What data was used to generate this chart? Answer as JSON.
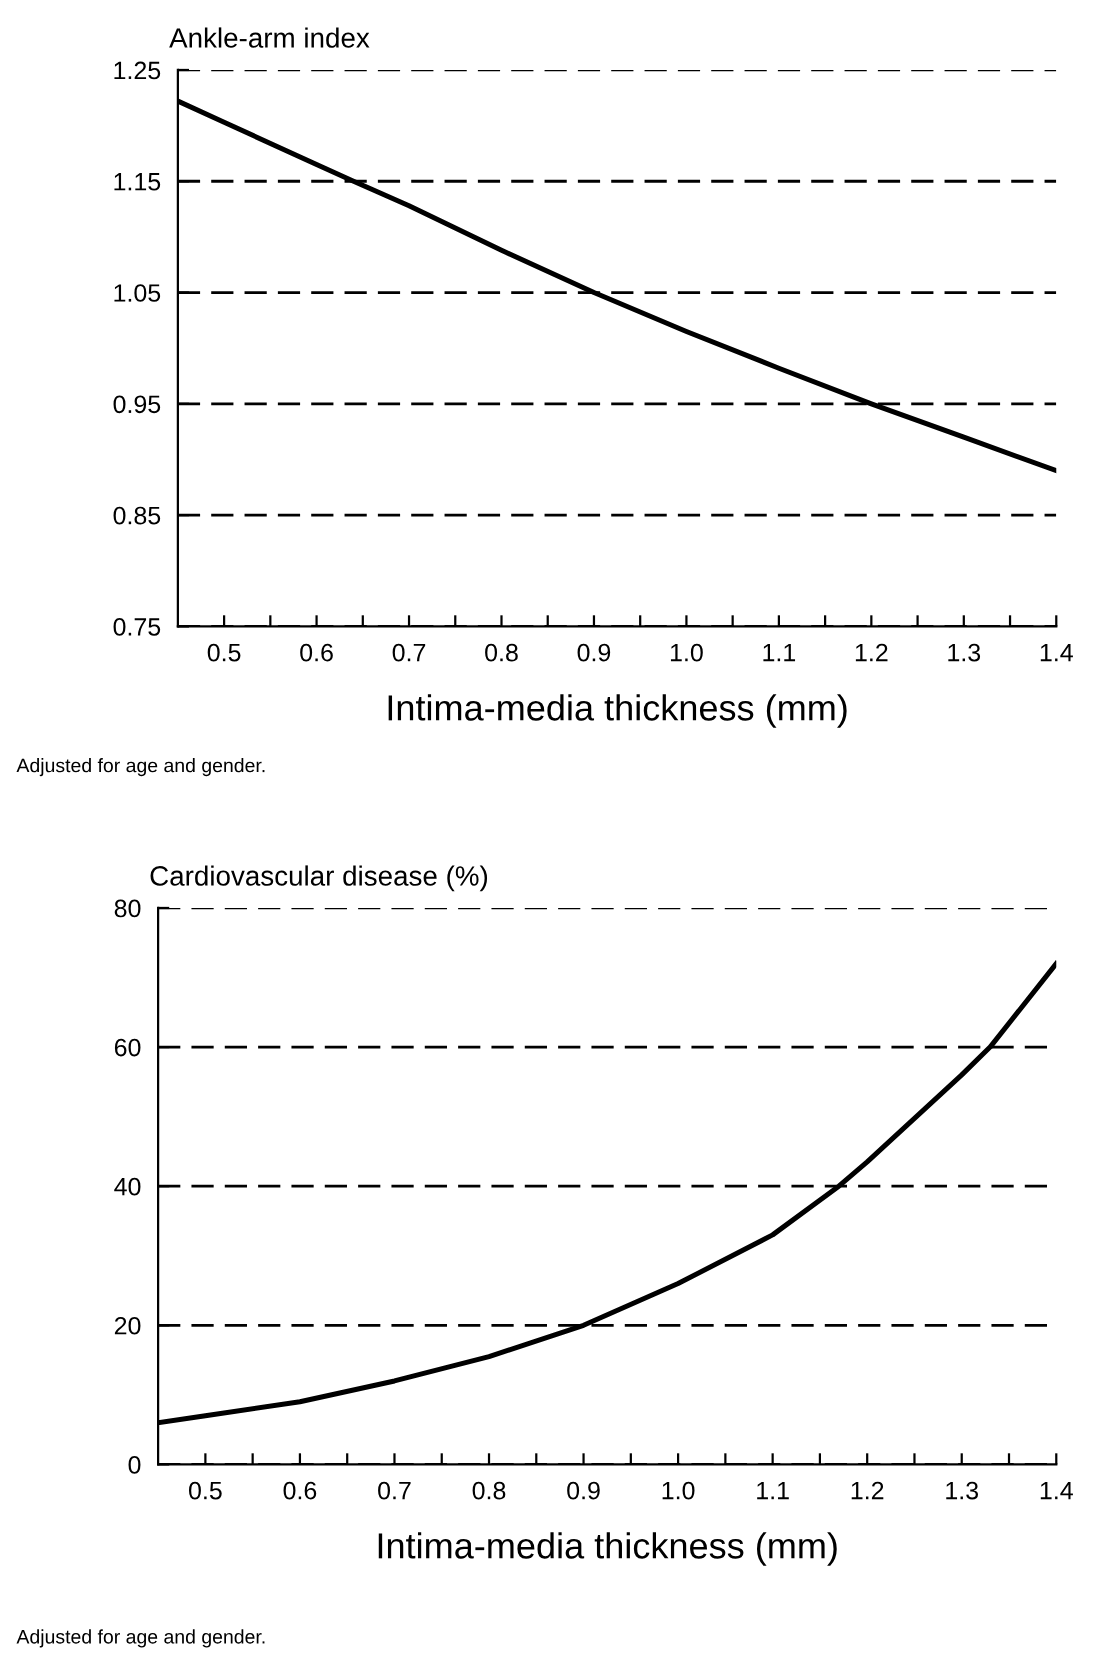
{
  "chart_data": [
    {
      "type": "line",
      "ylabel": "Ankle-arm index",
      "xlabel": "Intima-media thickness (mm)",
      "annotations": [
        "Adjusted for age and gender."
      ],
      "x": [
        0.45,
        0.5,
        0.6,
        0.64,
        0.7,
        0.8,
        0.9,
        1.0,
        1.1,
        1.2,
        1.3,
        1.4
      ],
      "series": [
        {
          "color": "#000000",
          "values": [
            1.222,
            1.203,
            1.165,
            1.15,
            1.128,
            1.088,
            1.05,
            1.015,
            0.982,
            0.95,
            0.92,
            0.89
          ]
        }
      ],
      "xlim": [
        0.45,
        1.4
      ],
      "ylim": [
        0.75,
        1.25
      ],
      "xticks": [
        0.5,
        0.6,
        0.7,
        0.8,
        0.9,
        {
          "value": 1.0,
          "label": "1.0"
        },
        1.1,
        1.2,
        1.3,
        1.4,
        {
          "value": 0.55,
          "label": null
        },
        {
          "value": 0.65,
          "label": null
        },
        {
          "value": 0.75,
          "label": null
        },
        {
          "value": 0.85,
          "label": null
        },
        {
          "value": 0.95,
          "label": null
        },
        {
          "value": 1.05,
          "label": null
        },
        {
          "value": 1.15,
          "label": null
        },
        {
          "value": 1.25,
          "label": null
        },
        {
          "value": 1.35,
          "label": null
        }
      ],
      "yticks": [
        0.75,
        0.85,
        0.95,
        1.05,
        1.15,
        1.25
      ],
      "grid": "y",
      "line_style": "solid",
      "marker": "none"
    },
    {
      "type": "line",
      "ylabel": "Cardiovascular disease (%)",
      "xlabel": "Intima-media thickness (mm)",
      "annotations": [
        "Adjusted for age and gender."
      ],
      "x": [
        0.45,
        0.5,
        0.6,
        0.7,
        0.8,
        0.9,
        1.0,
        1.1,
        1.17,
        1.2,
        1.3,
        1.33,
        1.4
      ],
      "series": [
        {
          "color": "#000000",
          "values": [
            6,
            7,
            9,
            12,
            15.5,
            20,
            26,
            33,
            40,
            43.5,
            56,
            60,
            72
          ]
        }
      ],
      "xlim": [
        0.45,
        1.4
      ],
      "ylim": [
        0,
        80
      ],
      "xticks": [
        0.5,
        0.6,
        0.7,
        0.8,
        0.9,
        {
          "value": 1.0,
          "label": "1.0"
        },
        1.1,
        1.2,
        1.3,
        1.4,
        {
          "value": 0.55,
          "label": null
        },
        {
          "value": 0.65,
          "label": null
        },
        {
          "value": 0.75,
          "label": null
        },
        {
          "value": 0.85,
          "label": null
        },
        {
          "value": 0.95,
          "label": null
        },
        {
          "value": 1.05,
          "label": null
        },
        {
          "value": 1.15,
          "label": null
        },
        {
          "value": 1.25,
          "label": null
        },
        {
          "value": 1.35,
          "label": null
        }
      ],
      "yticks": [
        0,
        20,
        40,
        60,
        80
      ],
      "grid": "y",
      "line_style": "solid",
      "marker": "none"
    }
  ]
}
